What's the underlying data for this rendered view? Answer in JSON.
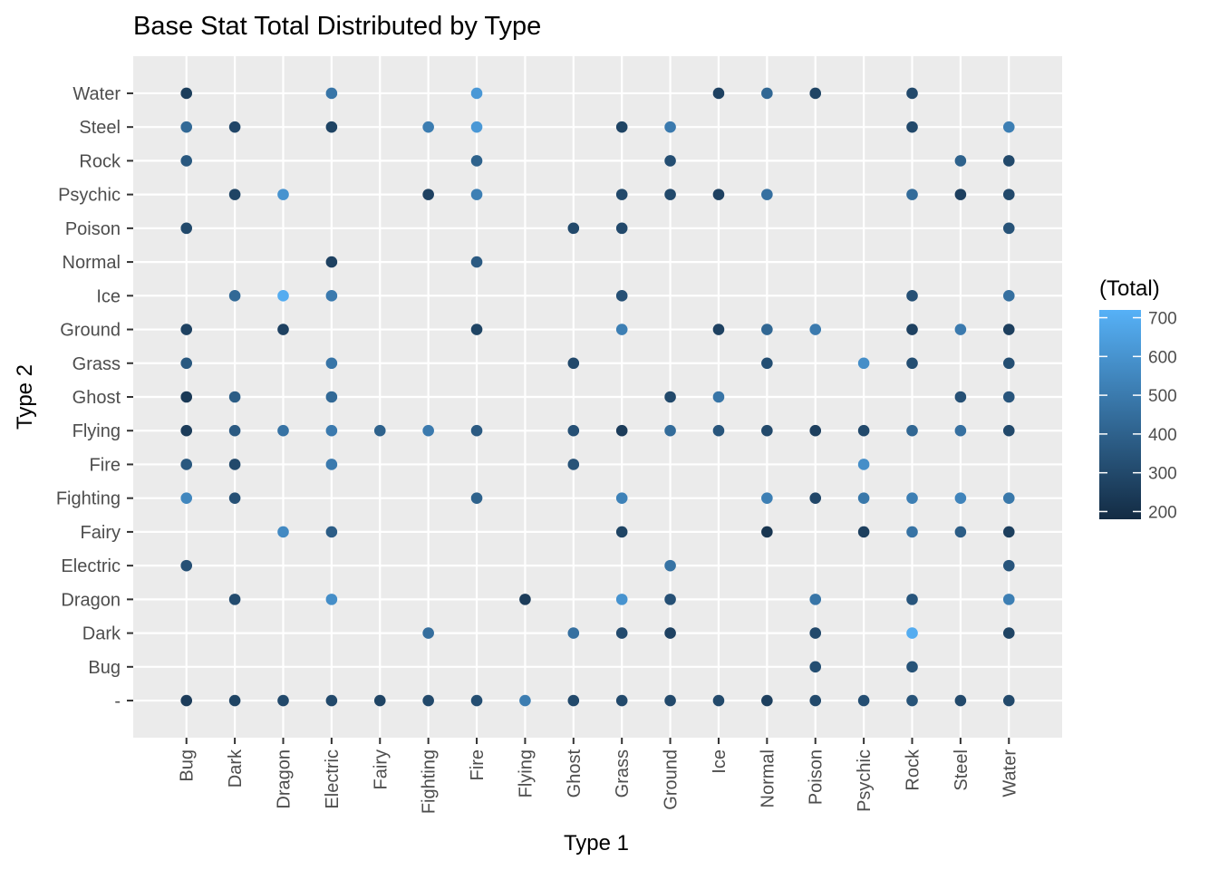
{
  "chart_data": {
    "type": "scatter",
    "title": "Base Stat Total Distributed by Type",
    "xlabel": "Type 1",
    "ylabel": "Type 2",
    "x_categories": [
      "Bug",
      "Dark",
      "Dragon",
      "Electric",
      "Fairy",
      "Fighting",
      "Fire",
      "Flying",
      "Ghost",
      "Grass",
      "Ground",
      "Ice",
      "Normal",
      "Poison",
      "Psychic",
      "Rock",
      "Steel",
      "Water"
    ],
    "y_categories": [
      "",
      "Bug",
      "Dark",
      "Dragon",
      "Electric",
      "Fairy",
      "Fighting",
      "Fire",
      "Flying",
      "Ghost",
      "Grass",
      "Ground",
      "Ice",
      "Normal",
      "Poison",
      "Psychic",
      "Rock",
      "Steel",
      "Water"
    ],
    "color_legend": {
      "title": "(Total)",
      "min": 180,
      "max": 720,
      "ticks": [
        200,
        300,
        400,
        500,
        600,
        700
      ],
      "low_color": "#132B43",
      "high_color": "#56B1F7"
    },
    "grid": true,
    "legend_position": "right",
    "points": [
      {
        "x": "Bug",
        "y": "Water",
        "total": 255
      },
      {
        "x": "Bug",
        "y": "Steel",
        "total": 430
      },
      {
        "x": "Bug",
        "y": "Rock",
        "total": 360
      },
      {
        "x": "Bug",
        "y": "Poison",
        "total": 300
      },
      {
        "x": "Bug",
        "y": "Ground",
        "total": 270
      },
      {
        "x": "Bug",
        "y": "Grass",
        "total": 360
      },
      {
        "x": "Bug",
        "y": "Ghost",
        "total": 236
      },
      {
        "x": "Bug",
        "y": "Flying",
        "total": 250
      },
      {
        "x": "Bug",
        "y": "Fire",
        "total": 360
      },
      {
        "x": "Bug",
        "y": "Fighting",
        "total": 550
      },
      {
        "x": "Bug",
        "y": "Electric",
        "total": 330
      },
      {
        "x": "Bug",
        "y": "",
        "total": 250
      },
      {
        "x": "Dark",
        "y": "Steel",
        "total": 290
      },
      {
        "x": "Dark",
        "y": "Psychic",
        "total": 280
      },
      {
        "x": "Dark",
        "y": "Ice",
        "total": 430
      },
      {
        "x": "Dark",
        "y": "Ghost",
        "total": 380
      },
      {
        "x": "Dark",
        "y": "Flying",
        "total": 370
      },
      {
        "x": "Dark",
        "y": "Fire",
        "total": 300
      },
      {
        "x": "Dark",
        "y": "Fighting",
        "total": 330
      },
      {
        "x": "Dark",
        "y": "Dragon",
        "total": 310
      },
      {
        "x": "Dark",
        "y": "",
        "total": 280
      },
      {
        "x": "Dragon",
        "y": "Psychic",
        "total": 600
      },
      {
        "x": "Dragon",
        "y": "Ice",
        "total": 700
      },
      {
        "x": "Dragon",
        "y": "Ground",
        "total": 270
      },
      {
        "x": "Dragon",
        "y": "Flying",
        "total": 470
      },
      {
        "x": "Dragon",
        "y": "Fairy",
        "total": 560
      },
      {
        "x": "Dragon",
        "y": "",
        "total": 300
      },
      {
        "x": "Electric",
        "y": "Water",
        "total": 480
      },
      {
        "x": "Electric",
        "y": "Steel",
        "total": 280
      },
      {
        "x": "Electric",
        "y": "Normal",
        "total": 270
      },
      {
        "x": "Electric",
        "y": "Ice",
        "total": 500
      },
      {
        "x": "Electric",
        "y": "Grass",
        "total": 480
      },
      {
        "x": "Electric",
        "y": "Ghost",
        "total": 430
      },
      {
        "x": "Electric",
        "y": "Flying",
        "total": 500
      },
      {
        "x": "Electric",
        "y": "Fire",
        "total": 500
      },
      {
        "x": "Electric",
        "y": "Fairy",
        "total": 380
      },
      {
        "x": "Electric",
        "y": "Dragon",
        "total": 580
      },
      {
        "x": "Electric",
        "y": "",
        "total": 300
      },
      {
        "x": "Fairy",
        "y": "Flying",
        "total": 400
      },
      {
        "x": "Fairy",
        "y": "",
        "total": 280
      },
      {
        "x": "Fighting",
        "y": "Steel",
        "total": 510
      },
      {
        "x": "Fighting",
        "y": "Psychic",
        "total": 270
      },
      {
        "x": "Fighting",
        "y": "Flying",
        "total": 500
      },
      {
        "x": "Fighting",
        "y": "Dark",
        "total": 450
      },
      {
        "x": "Fighting",
        "y": "",
        "total": 300
      },
      {
        "x": "Fire",
        "y": "Water",
        "total": 620
      },
      {
        "x": "Fire",
        "y": "Steel",
        "total": 620
      },
      {
        "x": "Fire",
        "y": "Rock",
        "total": 400
      },
      {
        "x": "Fire",
        "y": "Psychic",
        "total": 520
      },
      {
        "x": "Fire",
        "y": "Normal",
        "total": 370
      },
      {
        "x": "Fire",
        "y": "Ground",
        "total": 280
      },
      {
        "x": "Fire",
        "y": "Flying",
        "total": 370
      },
      {
        "x": "Fire",
        "y": "Fighting",
        "total": 400
      },
      {
        "x": "Fire",
        "y": "",
        "total": 320
      },
      {
        "x": "Flying",
        "y": "Dragon",
        "total": 250
      },
      {
        "x": "Flying",
        "y": "",
        "total": 510
      },
      {
        "x": "Ghost",
        "y": "Poison",
        "total": 300
      },
      {
        "x": "Ghost",
        "y": "Grass",
        "total": 300
      },
      {
        "x": "Ghost",
        "y": "Flying",
        "total": 330
      },
      {
        "x": "Ghost",
        "y": "Fire",
        "total": 340
      },
      {
        "x": "Ghost",
        "y": "Dark",
        "total": 460
      },
      {
        "x": "Ghost",
        "y": "",
        "total": 300
      },
      {
        "x": "Grass",
        "y": "Steel",
        "total": 280
      },
      {
        "x": "Grass",
        "y": "Psychic",
        "total": 300
      },
      {
        "x": "Grass",
        "y": "Poison",
        "total": 300
      },
      {
        "x": "Grass",
        "y": "Ice",
        "total": 330
      },
      {
        "x": "Grass",
        "y": "Ground",
        "total": 520
      },
      {
        "x": "Grass",
        "y": "Flying",
        "total": 250
      },
      {
        "x": "Grass",
        "y": "Fighting",
        "total": 530
      },
      {
        "x": "Grass",
        "y": "Fairy",
        "total": 280
      },
      {
        "x": "Grass",
        "y": "Dragon",
        "total": 600
      },
      {
        "x": "Grass",
        "y": "Dark",
        "total": 310
      },
      {
        "x": "Grass",
        "y": "",
        "total": 300
      },
      {
        "x": "Ground",
        "y": "Steel",
        "total": 500
      },
      {
        "x": "Ground",
        "y": "Rock",
        "total": 320
      },
      {
        "x": "Ground",
        "y": "Psychic",
        "total": 300
      },
      {
        "x": "Ground",
        "y": "Ghost",
        "total": 300
      },
      {
        "x": "Ground",
        "y": "Flying",
        "total": 440
      },
      {
        "x": "Ground",
        "y": "Electric",
        "total": 470
      },
      {
        "x": "Ground",
        "y": "Dragon",
        "total": 330
      },
      {
        "x": "Ground",
        "y": "Dark",
        "total": 270
      },
      {
        "x": "Ground",
        "y": "",
        "total": 300
      },
      {
        "x": "Ice",
        "y": "Water",
        "total": 270
      },
      {
        "x": "Ice",
        "y": "Psychic",
        "total": 270
      },
      {
        "x": "Ice",
        "y": "Ground",
        "total": 270
      },
      {
        "x": "Ice",
        "y": "Ghost",
        "total": 480
      },
      {
        "x": "Ice",
        "y": "Flying",
        "total": 350
      },
      {
        "x": "Ice",
        "y": "",
        "total": 300
      },
      {
        "x": "Normal",
        "y": "Water",
        "total": 420
      },
      {
        "x": "Normal",
        "y": "Psychic",
        "total": 460
      },
      {
        "x": "Normal",
        "y": "Ground",
        "total": 420
      },
      {
        "x": "Normal",
        "y": "Grass",
        "total": 320
      },
      {
        "x": "Normal",
        "y": "Flying",
        "total": 300
      },
      {
        "x": "Normal",
        "y": "Fighting",
        "total": 520
      },
      {
        "x": "Normal",
        "y": "Fairy",
        "total": 220
      },
      {
        "x": "Normal",
        "y": "",
        "total": 260
      },
      {
        "x": "Poison",
        "y": "Water",
        "total": 280
      },
      {
        "x": "Poison",
        "y": "Ground",
        "total": 500
      },
      {
        "x": "Poison",
        "y": "Flying",
        "total": 260
      },
      {
        "x": "Poison",
        "y": "Fighting",
        "total": 290
      },
      {
        "x": "Poison",
        "y": "Dragon",
        "total": 480
      },
      {
        "x": "Poison",
        "y": "Dark",
        "total": 300
      },
      {
        "x": "Poison",
        "y": "Bug",
        "total": 320
      },
      {
        "x": "Poison",
        "y": "",
        "total": 300
      },
      {
        "x": "Psychic",
        "y": "Grass",
        "total": 580
      },
      {
        "x": "Psychic",
        "y": "Flying",
        "total": 300
      },
      {
        "x": "Psychic",
        "y": "Fire",
        "total": 580
      },
      {
        "x": "Psychic",
        "y": "Fighting",
        "total": 490
      },
      {
        "x": "Psychic",
        "y": "Fairy",
        "total": 260
      },
      {
        "x": "Psychic",
        "y": "",
        "total": 320
      },
      {
        "x": "Rock",
        "y": "Water",
        "total": 300
      },
      {
        "x": "Rock",
        "y": "Steel",
        "total": 300
      },
      {
        "x": "Rock",
        "y": "Psychic",
        "total": 440
      },
      {
        "x": "Rock",
        "y": "Ice",
        "total": 330
      },
      {
        "x": "Rock",
        "y": "Ground",
        "total": 270
      },
      {
        "x": "Rock",
        "y": "Grass",
        "total": 320
      },
      {
        "x": "Rock",
        "y": "Flying",
        "total": 420
      },
      {
        "x": "Rock",
        "y": "Fighting",
        "total": 520
      },
      {
        "x": "Rock",
        "y": "Fairy",
        "total": 470
      },
      {
        "x": "Rock",
        "y": "Dragon",
        "total": 350
      },
      {
        "x": "Rock",
        "y": "Dark",
        "total": 700
      },
      {
        "x": "Rock",
        "y": "Bug",
        "total": 340
      },
      {
        "x": "Rock",
        "y": "",
        "total": 340
      },
      {
        "x": "Steel",
        "y": "Rock",
        "total": 400
      },
      {
        "x": "Steel",
        "y": "Psychic",
        "total": 260
      },
      {
        "x": "Steel",
        "y": "Ground",
        "total": 500
      },
      {
        "x": "Steel",
        "y": "Ghost",
        "total": 330
      },
      {
        "x": "Steel",
        "y": "Flying",
        "total": 460
      },
      {
        "x": "Steel",
        "y": "Fighting",
        "total": 540
      },
      {
        "x": "Steel",
        "y": "Fairy",
        "total": 380
      },
      {
        "x": "Steel",
        "y": "",
        "total": 300
      },
      {
        "x": "Water",
        "y": "Steel",
        "total": 520
      },
      {
        "x": "Water",
        "y": "Rock",
        "total": 300
      },
      {
        "x": "Water",
        "y": "Psychic",
        "total": 300
      },
      {
        "x": "Water",
        "y": "Poison",
        "total": 340
      },
      {
        "x": "Water",
        "y": "Ice",
        "total": 460
      },
      {
        "x": "Water",
        "y": "Ground",
        "total": 260
      },
      {
        "x": "Water",
        "y": "Grass",
        "total": 320
      },
      {
        "x": "Water",
        "y": "Ghost",
        "total": 350
      },
      {
        "x": "Water",
        "y": "Flying",
        "total": 300
      },
      {
        "x": "Water",
        "y": "Fighting",
        "total": 490
      },
      {
        "x": "Water",
        "y": "Fairy",
        "total": 260
      },
      {
        "x": "Water",
        "y": "Electric",
        "total": 350
      },
      {
        "x": "Water",
        "y": "Dragon",
        "total": 520
      },
      {
        "x": "Water",
        "y": "Dark",
        "total": 280
      },
      {
        "x": "Water",
        "y": "",
        "total": 300
      }
    ]
  }
}
